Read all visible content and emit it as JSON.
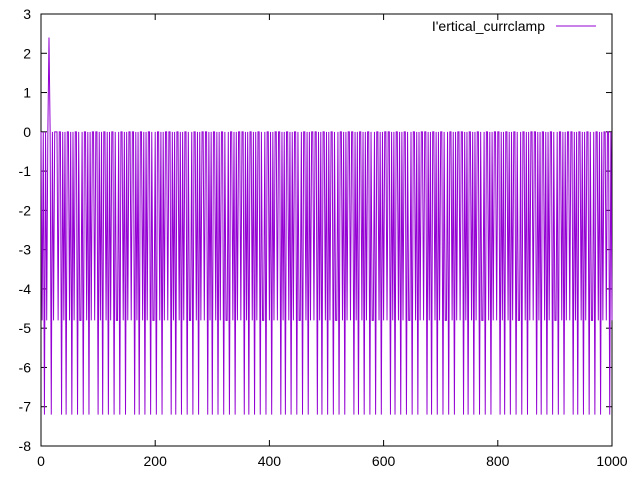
{
  "chart_data": {
    "type": "line",
    "title": "",
    "xlabel": "",
    "ylabel": "",
    "xlim": [
      0,
      1000
    ],
    "ylim": [
      -8,
      3
    ],
    "x_ticks": [
      0,
      200,
      400,
      600,
      800,
      1000
    ],
    "y_ticks": [
      3,
      2,
      1,
      0,
      -1,
      -2,
      -3,
      -4,
      -5,
      -6,
      -7,
      -8
    ],
    "x_tick_labels": [
      "0",
      "200",
      "400",
      "600",
      "800",
      "1000"
    ],
    "y_tick_labels": [
      "3",
      "2",
      "1",
      "0",
      "-1",
      "-2",
      "-3",
      "-4",
      "-5",
      "-6",
      "-7",
      "-8"
    ],
    "grid": false,
    "legend_position": "top-right",
    "series": [
      {
        "name": "I'ertical_currclamp",
        "color": "#9400d3",
        "segment_pattern": [
          0,
          0,
          -4.8,
          0,
          0,
          -7.2,
          0,
          -4.8,
          0,
          -7.2,
          0,
          0,
          -4.8,
          0,
          -7.2,
          0,
          -4.8,
          0,
          0,
          -7.2,
          0,
          -4.8,
          -4.8,
          0,
          -7.2,
          0,
          0,
          -4.8,
          0,
          -7.2,
          0,
          -4.8
        ],
        "points": [
          [
            0,
            0
          ],
          [
            2,
            -4.8
          ],
          [
            4,
            0
          ],
          [
            6,
            -7.2
          ],
          [
            8,
            0
          ],
          [
            10,
            -4.8
          ],
          [
            12,
            0
          ],
          [
            14,
            2.4
          ],
          [
            16,
            0
          ],
          [
            18,
            -7.2
          ],
          [
            20,
            0
          ],
          [
            22,
            -4.8
          ],
          [
            24,
            0
          ]
        ]
      }
    ]
  }
}
